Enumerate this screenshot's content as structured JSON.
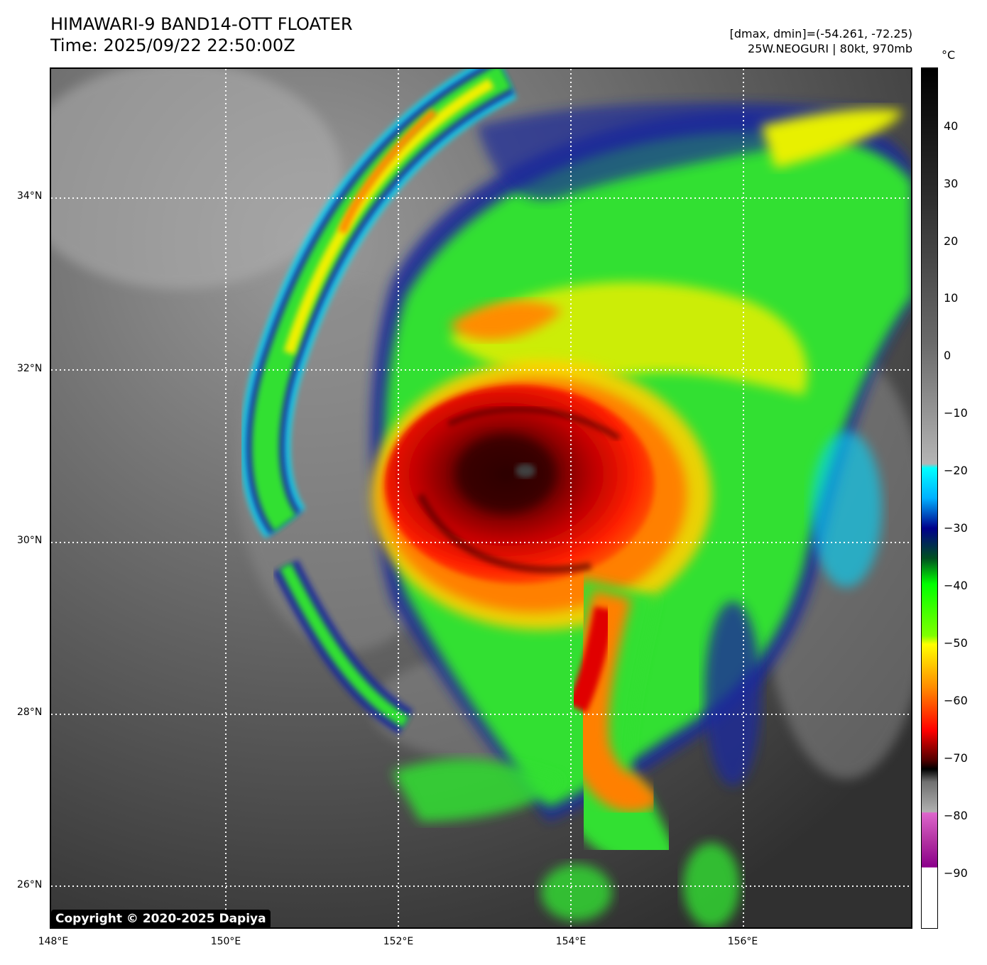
{
  "header": {
    "title_line1": "HIMAWARI-9 BAND14-OTT FLOATER",
    "title_line2": "Time: 2025/09/22 22:50:00Z",
    "info_line1": "[dmax, dmin]=(-54.261, -72.25)",
    "info_line2": "25W.NEOGURI | 80kt, 970mb"
  },
  "map": {
    "lat_labels": [
      "34°N",
      "32°N",
      "30°N",
      "28°N",
      "26°N"
    ],
    "lon_labels": [
      "148°E",
      "150°E",
      "152°E",
      "154°E",
      "156°E"
    ],
    "copyright": "Copyright © 2020-2025 Dapiya"
  },
  "colorbar": {
    "unit": "°C",
    "ticks": [
      "40",
      "30",
      "20",
      "10",
      "0",
      "−10",
      "−20",
      "−30",
      "−40",
      "−50",
      "−60",
      "−70",
      "−80",
      "−90"
    ],
    "colors": {
      "cyan": "#00ffff",
      "blue": "#00008b",
      "green": "#00ff00",
      "yellow": "#ffff00",
      "orange": "#ff8c00",
      "red": "#ff0000",
      "darkred": "#5a0000",
      "magenta": "#cc66cc",
      "purple": "#8b008b"
    }
  }
}
